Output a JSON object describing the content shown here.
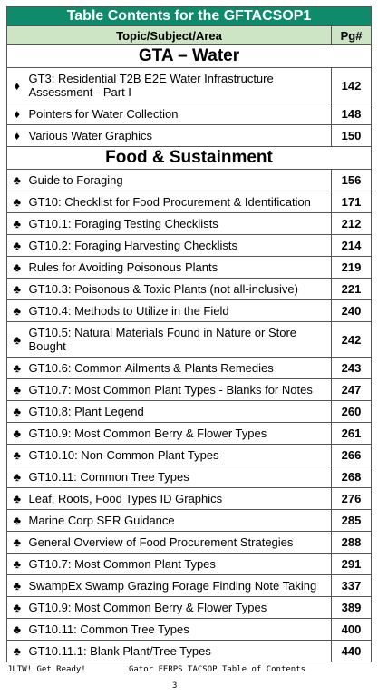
{
  "title": "Table Contents for the GFTACSOP1",
  "columns": {
    "topic": "Topic/Subject/Area",
    "page": "Pg#"
  },
  "sections": [
    {
      "name": "GTA – Water",
      "bullet": "♦",
      "bullet_icon": "diamond-icon",
      "items": [
        {
          "text": "GT3: Residential T2B E2E Water Infrastructure Assessment - Part I",
          "page": "142"
        },
        {
          "text": "Pointers for Water Collection",
          "page": "148"
        },
        {
          "text": "Various Water Graphics",
          "page": "150"
        }
      ]
    },
    {
      "name": "Food & Sustainment",
      "bullet": "♣",
      "bullet_icon": "club-icon",
      "items": [
        {
          "text": "Guide to Foraging",
          "page": "156"
        },
        {
          "text": "GT10: Checklist for Food Procurement & Identification",
          "page": "171"
        },
        {
          "text": "GT10.1: Foraging Testing Checklists",
          "page": "212"
        },
        {
          "text": "GT10.2: Foraging Harvesting Checklists",
          "page": "214"
        },
        {
          "text": "Rules for Avoiding Poisonous Plants",
          "page": "219"
        },
        {
          "text": "GT10.3: Poisonous & Toxic Plants (not all-inclusive)",
          "page": "221"
        },
        {
          "text": "GT10.4: Methods to Utilize in the Field",
          "page": "240"
        },
        {
          "text": "GT10.5: Natural Materials Found in Nature or Store Bought",
          "page": "242"
        },
        {
          "text": "GT10.6: Common Ailments & Plants Remedies",
          "page": "243"
        },
        {
          "text": "GT10.7: Most Common Plant Types - Blanks for Notes",
          "page": "247"
        },
        {
          "text": "GT10.8: Plant Legend",
          "page": "260"
        },
        {
          "text": "GT10.9: Most Common Berry & Flower Types",
          "page": "261"
        },
        {
          "text": "GT10.10: Non-Common Plant Types",
          "page": "266"
        },
        {
          "text": "GT10.11: Common Tree Types",
          "page": "268"
        },
        {
          "text": "Leaf, Roots, Food Types ID Graphics",
          "page": "276"
        },
        {
          "text": "Marine Corp SER Guidance",
          "page": "285"
        },
        {
          "text": "General Overview of Food Procurement Strategies",
          "page": "288"
        },
        {
          "text": "GT10.7: Most Common Plant Types",
          "page": "291"
        },
        {
          "text": "SwampEx Swamp Grazing Forage Finding Note Taking",
          "page": "337"
        },
        {
          "text": "GT10.9: Most Common Berry & Flower Types",
          "page": "389"
        },
        {
          "text": "GT10.11: Common Tree Types",
          "page": "400"
        },
        {
          "text": "GT10.11.1: Blank Plant/Tree Types",
          "page": "440"
        }
      ]
    }
  ],
  "footer": {
    "left": "JLTW! Get Ready!",
    "right": "Gator FERPS TACSOP Table of Contents",
    "page_number": "3"
  },
  "colors": {
    "title_bg": "#0f8a6a",
    "header_bg": "#cde5c4",
    "border": "#555555"
  }
}
